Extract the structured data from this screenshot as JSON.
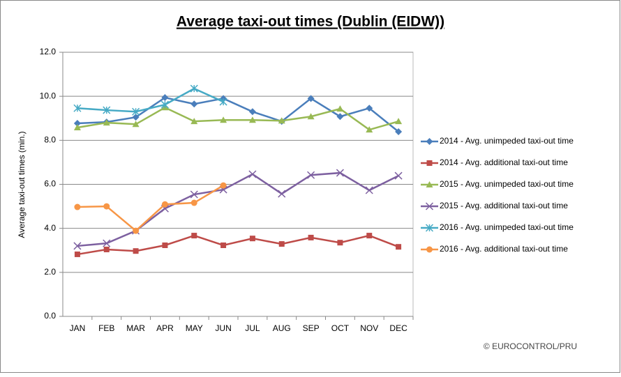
{
  "chart_data": {
    "type": "line",
    "title": "Average taxi-out times (Dublin (EIDW))",
    "y_label": "Average taxi-out times (min.)",
    "annotation": "© EUROCONTROL/PRU",
    "categories": [
      "JAN",
      "FEB",
      "MAR",
      "APR",
      "MAY",
      "JUN",
      "JUL",
      "AUG",
      "SEP",
      "OCT",
      "NOV",
      "DEC"
    ],
    "ylim": [
      0,
      12
    ],
    "yticks": [
      {
        "value": 0,
        "label": "0.0"
      },
      {
        "value": 2,
        "label": "2.0"
      },
      {
        "value": 4,
        "label": "4.0"
      },
      {
        "value": 6,
        "label": "6.0"
      },
      {
        "value": 8,
        "label": "8.0"
      },
      {
        "value": 10,
        "label": "10.0"
      },
      {
        "value": 12,
        "label": "12.0"
      }
    ],
    "grid": true,
    "legend": "right",
    "series": [
      {
        "name": "2014 - Avg. unimpeded taxi-out time",
        "color": "#4a7ebb",
        "marker": "diamond",
        "values": [
          8.77,
          8.83,
          9.05,
          9.94,
          9.65,
          9.9,
          9.3,
          8.86,
          9.9,
          9.08,
          9.46,
          8.39
        ]
      },
      {
        "name": "2014 - Avg. additional taxi-out time",
        "color": "#be4b48",
        "marker": "square",
        "values": [
          2.82,
          3.04,
          2.97,
          3.23,
          3.67,
          3.23,
          3.54,
          3.29,
          3.58,
          3.35,
          3.67,
          3.16
        ]
      },
      {
        "name": "2015 - Avg. unimpeded taxi-out time",
        "color": "#98b954",
        "marker": "triangle",
        "values": [
          8.58,
          8.8,
          8.73,
          9.49,
          8.86,
          8.92,
          8.92,
          8.89,
          9.08,
          9.43,
          8.48,
          8.86
        ]
      },
      {
        "name": "2015 - Avg. additional taxi-out time",
        "color": "#7d60a0",
        "marker": "x",
        "values": [
          3.2,
          3.32,
          3.89,
          4.9,
          5.54,
          5.76,
          6.46,
          5.57,
          6.42,
          6.52,
          5.73,
          6.39
        ]
      },
      {
        "name": "2016 - Avg. unimpeded taxi-out time",
        "color": "#46aac5",
        "marker": "star",
        "values": [
          9.46,
          9.37,
          9.3,
          9.62,
          10.35,
          9.75,
          null,
          null,
          null,
          null,
          null,
          null
        ]
      },
      {
        "name": "2016 - Avg. additional taxi-out time",
        "color": "#f79646",
        "marker": "circle",
        "values": [
          4.97,
          5.0,
          3.89,
          5.09,
          5.16,
          5.95,
          null,
          null,
          null,
          null,
          null,
          null
        ]
      }
    ]
  }
}
